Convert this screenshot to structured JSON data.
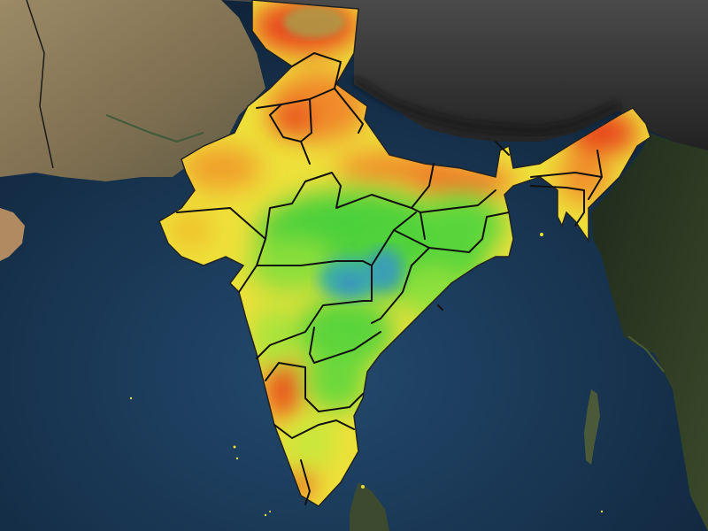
{
  "map": {
    "type": "choropleth-heatmap",
    "region": "India",
    "legend": null,
    "colors": {
      "ocean": "#1b3a5c",
      "ocean_deep": "#0d1f33",
      "land_west": "#8a7a5a",
      "land_north": "#3a3a3a",
      "land_east": "#2c3a24",
      "heat_low": "#3fa7b5",
      "heat_mid_low": "#4cd03a",
      "heat_mid": "#c8e83a",
      "heat_mid_high": "#f4e23a",
      "heat_high": "#f0902a",
      "heat_peak": "#e83a1e",
      "boundary": "#111111"
    }
  }
}
